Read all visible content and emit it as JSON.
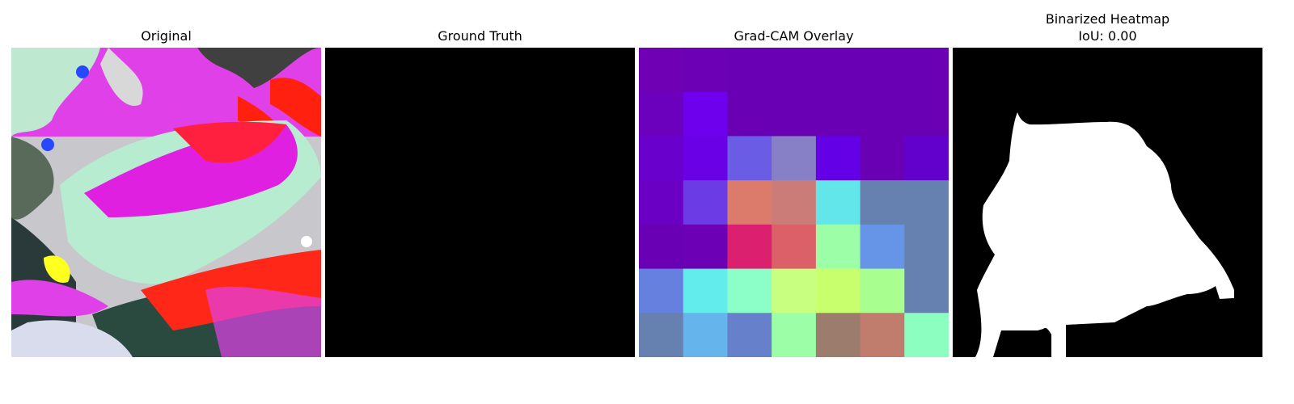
{
  "panels": [
    {
      "title": "Original"
    },
    {
      "title": "Ground Truth"
    },
    {
      "title": "Grad-CAM Overlay"
    },
    {
      "title": "Binarized Heatmap",
      "subtitle": "IoU: 0.00"
    }
  ],
  "gradcam_grid": [
    [
      "#6f00b4",
      "#6c00b4",
      "#6a00b4",
      "#6a00b4",
      "#6a00b4",
      "#6a00b4",
      "#6a00b4"
    ],
    [
      "#6b00bd",
      "#6e00ee",
      "#6a00b4",
      "#6a00b4",
      "#6a00b4",
      "#6a00b4",
      "#6a00b4"
    ],
    [
      "#6a00cc",
      "#6a00e6",
      "#6b5ce6",
      "#8880c6",
      "#6300e6",
      "#6a00b4",
      "#6200cc"
    ],
    [
      "#6a00c4",
      "#6b3be6",
      "#dc7a6c",
      "#cc7c78",
      "#63e6ea",
      "#6680b0",
      "#6680b0"
    ],
    [
      "#6a00b4",
      "#6b00b4",
      "#dc2070",
      "#dc6068",
      "#9cffa8",
      "#6694e6",
      "#6680b0"
    ],
    [
      "#6680e0",
      "#63ecec",
      "#8cffc8",
      "#c8ff80",
      "#c8ff6c",
      "#a8ff90",
      "#6680b0"
    ],
    [
      "#6680b0",
      "#66b4ec",
      "#6680cc",
      "#9cffa8",
      "#9c7c6c",
      "#c07c6c",
      "#8cffc0"
    ]
  ]
}
